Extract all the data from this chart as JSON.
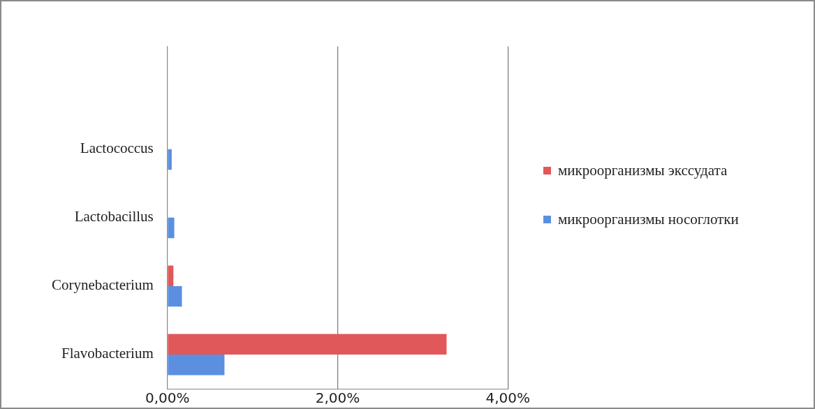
{
  "chart_data": {
    "type": "bar",
    "orientation": "horizontal",
    "categories": [
      null,
      "Lactococcus",
      "Lactobacillus",
      "Corynebacterium",
      "Flavobacterium"
    ],
    "series": [
      {
        "name": "микроорганизмы экссудата",
        "color": "#e0585a",
        "values": [
          null,
          null,
          null,
          0.07,
          3.28
        ]
      },
      {
        "name": "микроорганизмы носоглотки",
        "color": "#5b8fe0",
        "values": [
          null,
          0.05,
          0.08,
          0.17,
          0.67
        ]
      }
    ],
    "xlim": [
      0,
      4
    ],
    "xticks": [
      {
        "value": 0,
        "label": "0,00%"
      },
      {
        "value": 2,
        "label": "2,00%"
      },
      {
        "value": 4,
        "label": "4,00%"
      }
    ],
    "grid": "x",
    "legend": "right"
  }
}
